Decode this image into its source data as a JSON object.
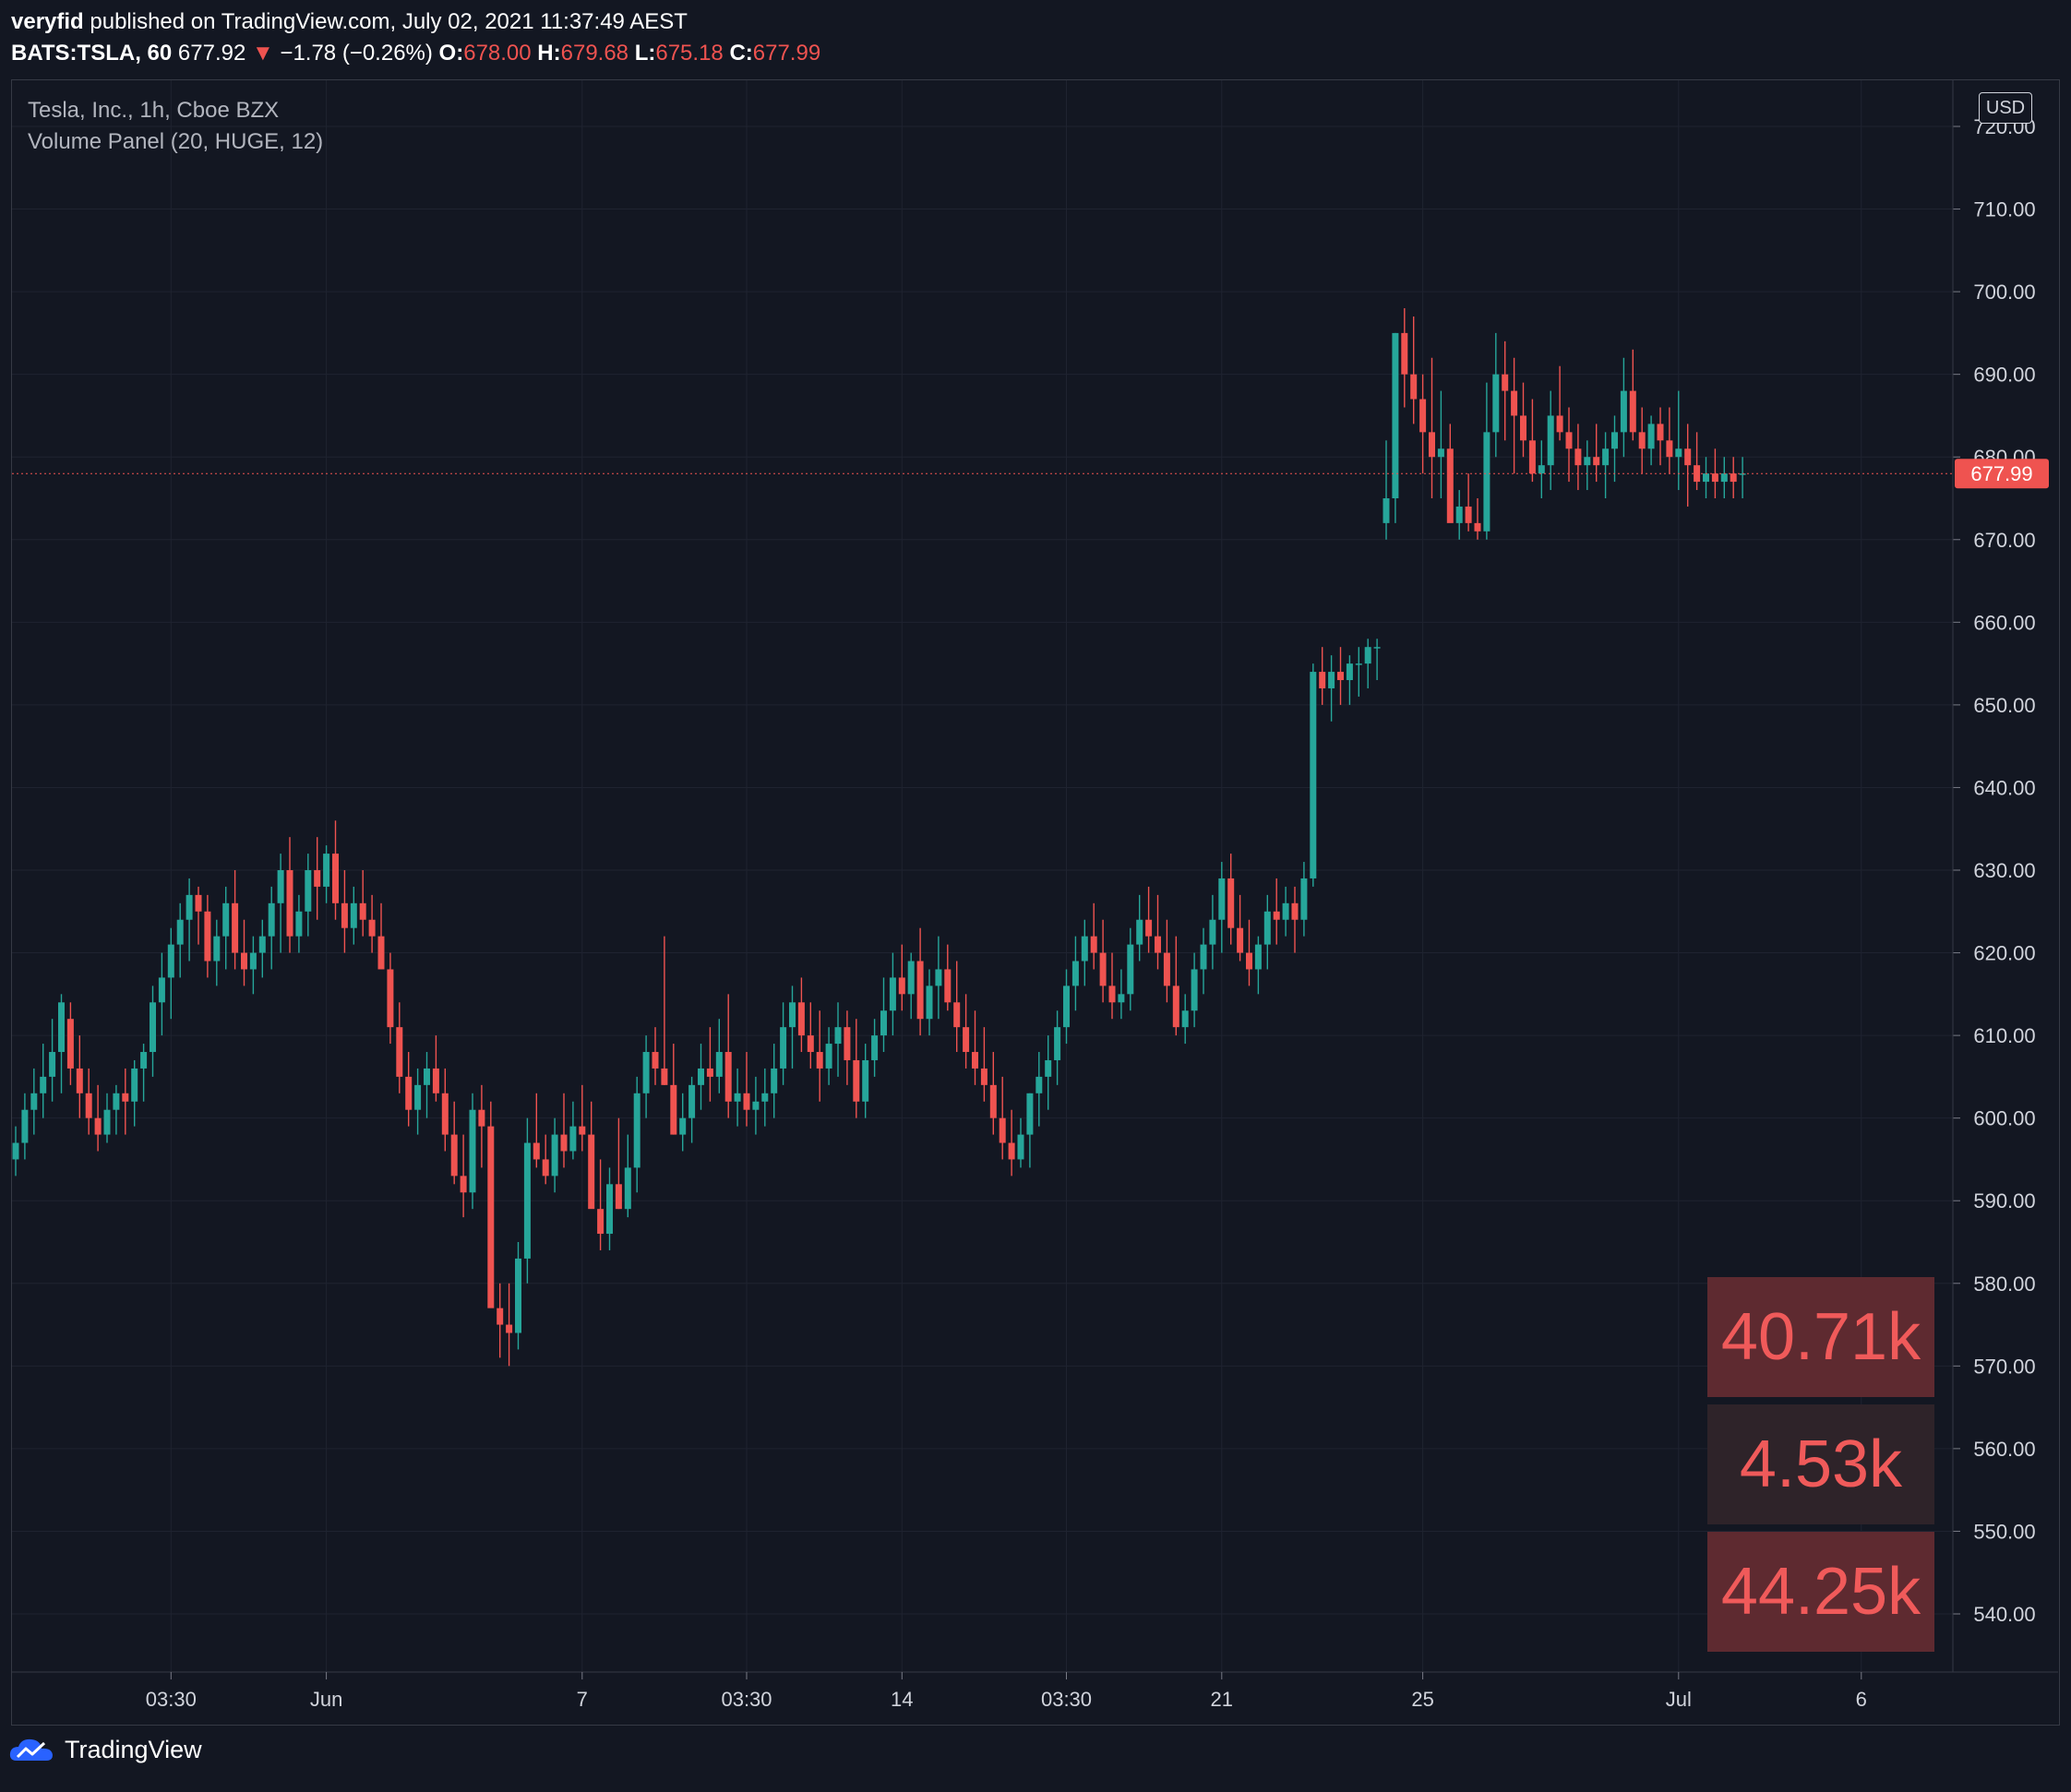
{
  "header": {
    "author": "veryfid",
    "published_text": "published on TradingView.com, July 02, 2021 11:37:49 AEST",
    "symbol": "BATS:TSLA, 60",
    "last": "677.92",
    "arrow": "▼",
    "change": "−1.78 (−0.26%)",
    "o_label": "O:",
    "o_value": "678.00",
    "h_label": "H:",
    "h_value": "679.68",
    "l_label": "L:",
    "l_value": "675.18",
    "c_label": "C:",
    "c_value": "677.99"
  },
  "legend": {
    "title": "Tesla, Inc., 1h, Cboe BZX",
    "indicator": "Volume Panel (20, HUGE, 12)"
  },
  "currency": "USD",
  "price_label": "677.99",
  "volume_boxes": [
    "40.71k",
    "4.53k",
    "44.25k"
  ],
  "footer": {
    "brand": "TradingView"
  },
  "colors": {
    "background": "#131722",
    "up": "#26a69a",
    "down": "#ef5350",
    "grid": "#1f2330",
    "price_line": "#ef5350"
  },
  "chart_data": {
    "type": "candlestick",
    "title": "Tesla, Inc., 1h, Cboe BZX",
    "ylim": [
      533,
      728
    ],
    "y_ticks": [
      720,
      710,
      700,
      690,
      680,
      670,
      660,
      650,
      640,
      630,
      620,
      610,
      600,
      590,
      580,
      570,
      560,
      550,
      540
    ],
    "x_tick_labels": [
      "03:30",
      "Jun",
      "7",
      "03:30",
      "14",
      "03:30",
      "21",
      "25",
      "Jul",
      "6"
    ],
    "x_tick_bar_index": [
      17,
      34,
      62,
      80,
      97,
      115,
      132,
      154,
      182,
      202
    ],
    "bar_count": 210,
    "last_price": 677.99,
    "bars": [
      [
        595,
        599,
        593,
        597
      ],
      [
        597,
        603,
        595,
        601
      ],
      [
        601,
        606,
        598,
        603
      ],
      [
        603,
        609,
        600,
        605
      ],
      [
        605,
        612,
        602,
        608
      ],
      [
        608,
        615,
        603,
        614
      ],
      [
        612,
        614,
        604,
        606
      ],
      [
        606,
        610,
        600,
        603
      ],
      [
        603,
        606,
        598,
        600
      ],
      [
        600,
        604,
        596,
        598
      ],
      [
        598,
        603,
        597,
        601
      ],
      [
        601,
        604,
        598,
        603
      ],
      [
        603,
        606,
        598,
        602
      ],
      [
        602,
        607,
        599,
        606
      ],
      [
        606,
        609,
        602,
        608
      ],
      [
        608,
        616,
        605,
        614
      ],
      [
        614,
        620,
        610,
        617
      ],
      [
        617,
        623,
        612,
        621
      ],
      [
        621,
        626,
        617,
        624
      ],
      [
        624,
        629,
        619,
        627
      ],
      [
        627,
        628,
        621,
        625
      ],
      [
        625,
        627,
        617,
        619
      ],
      [
        619,
        624,
        616,
        622
      ],
      [
        622,
        628,
        618,
        626
      ],
      [
        626,
        630,
        618,
        620
      ],
      [
        620,
        624,
        616,
        618
      ],
      [
        618,
        622,
        615,
        620
      ],
      [
        620,
        624,
        617,
        622
      ],
      [
        622,
        628,
        618,
        626
      ],
      [
        626,
        632,
        620,
        630
      ],
      [
        630,
        634,
        620,
        622
      ],
      [
        622,
        627,
        620,
        625
      ],
      [
        625,
        632,
        622,
        630
      ],
      [
        630,
        634,
        624,
        628
      ],
      [
        628,
        633,
        626,
        632
      ],
      [
        632,
        636,
        624,
        626
      ],
      [
        626,
        630,
        620,
        623
      ],
      [
        623,
        628,
        621,
        626
      ],
      [
        626,
        630,
        622,
        624
      ],
      [
        624,
        627,
        620,
        622
      ],
      [
        622,
        626,
        618,
        618
      ],
      [
        618,
        620,
        609,
        611
      ],
      [
        611,
        614,
        603,
        605
      ],
      [
        605,
        608,
        599,
        601
      ],
      [
        601,
        606,
        598,
        604
      ],
      [
        604,
        608,
        600,
        606
      ],
      [
        606,
        610,
        602,
        603
      ],
      [
        603,
        606,
        596,
        598
      ],
      [
        598,
        602,
        592,
        593
      ],
      [
        593,
        598,
        588,
        591
      ],
      [
        591,
        603,
        589,
        601
      ],
      [
        601,
        604,
        594,
        599
      ],
      [
        599,
        602,
        590,
        577
      ],
      [
        577,
        580,
        571,
        575
      ],
      [
        575,
        580,
        570,
        574
      ],
      [
        574,
        585,
        572,
        583
      ],
      [
        583,
        600,
        580,
        597
      ],
      [
        597,
        603,
        594,
        595
      ],
      [
        595,
        598,
        592,
        593
      ],
      [
        593,
        600,
        591,
        598
      ],
      [
        598,
        603,
        594,
        596
      ],
      [
        596,
        602,
        595,
        599
      ],
      [
        599,
        604,
        596,
        598
      ],
      [
        598,
        602,
        594,
        589
      ],
      [
        589,
        595,
        584,
        586
      ],
      [
        586,
        594,
        584,
        592
      ],
      [
        592,
        600,
        589,
        589
      ],
      [
        589,
        598,
        588,
        594
      ],
      [
        594,
        605,
        591,
        603
      ],
      [
        603,
        610,
        600,
        608
      ],
      [
        608,
        611,
        604,
        606
      ],
      [
        606,
        622,
        604,
        604
      ],
      [
        604,
        609,
        598,
        598
      ],
      [
        598,
        603,
        596,
        600
      ],
      [
        600,
        605,
        597,
        604
      ],
      [
        604,
        609,
        601,
        606
      ],
      [
        606,
        611,
        602,
        605
      ],
      [
        605,
        612,
        603,
        608
      ],
      [
        608,
        615,
        600,
        602
      ],
      [
        602,
        606,
        599,
        603
      ],
      [
        603,
        608,
        599,
        601
      ],
      [
        601,
        605,
        598,
        602
      ],
      [
        602,
        606,
        599,
        603
      ],
      [
        603,
        609,
        600,
        606
      ],
      [
        606,
        614,
        604,
        611
      ],
      [
        611,
        616,
        606,
        614
      ],
      [
        614,
        617,
        608,
        610
      ],
      [
        610,
        614,
        606,
        608
      ],
      [
        608,
        613,
        602,
        606
      ],
      [
        606,
        611,
        604,
        609
      ],
      [
        609,
        614,
        605,
        611
      ],
      [
        611,
        613,
        604,
        607
      ],
      [
        607,
        612,
        600,
        602
      ],
      [
        602,
        609,
        600,
        607
      ],
      [
        607,
        612,
        605,
        610
      ],
      [
        610,
        617,
        608,
        613
      ],
      [
        613,
        620,
        610,
        617
      ],
      [
        617,
        621,
        613,
        615
      ],
      [
        615,
        620,
        612,
        619
      ],
      [
        619,
        623,
        610,
        612
      ],
      [
        612,
        618,
        610,
        616
      ],
      [
        616,
        622,
        612,
        618
      ],
      [
        618,
        621,
        613,
        614
      ],
      [
        614,
        619,
        608,
        611
      ],
      [
        611,
        615,
        606,
        608
      ],
      [
        608,
        613,
        604,
        606
      ],
      [
        606,
        611,
        602,
        604
      ],
      [
        604,
        608,
        598,
        600
      ],
      [
        600,
        605,
        595,
        597
      ],
      [
        597,
        601,
        593,
        595
      ],
      [
        595,
        600,
        594,
        598
      ],
      [
        598,
        603,
        594,
        603
      ],
      [
        603,
        608,
        599,
        605
      ],
      [
        605,
        610,
        601,
        607
      ],
      [
        607,
        613,
        604,
        611
      ],
      [
        611,
        618,
        609,
        616
      ],
      [
        616,
        622,
        613,
        619
      ],
      [
        619,
        624,
        616,
        622
      ],
      [
        622,
        626,
        618,
        620
      ],
      [
        620,
        624,
        614,
        616
      ],
      [
        616,
        620,
        612,
        614
      ],
      [
        614,
        618,
        612,
        615
      ],
      [
        615,
        623,
        613,
        621
      ],
      [
        621,
        627,
        619,
        624
      ],
      [
        624,
        628,
        620,
        622
      ],
      [
        622,
        627,
        618,
        620
      ],
      [
        620,
        624,
        614,
        616
      ],
      [
        616,
        622,
        610,
        611
      ],
      [
        611,
        615,
        609,
        613
      ],
      [
        613,
        620,
        611,
        618
      ],
      [
        618,
        623,
        615,
        621
      ],
      [
        621,
        627,
        618,
        624
      ],
      [
        624,
        631,
        620,
        629
      ],
      [
        629,
        632,
        621,
        623
      ],
      [
        623,
        627,
        619,
        620
      ],
      [
        620,
        624,
        616,
        618
      ],
      [
        618,
        622,
        615,
        621
      ],
      [
        621,
        627,
        618,
        625
      ],
      [
        625,
        629,
        621,
        624
      ],
      [
        624,
        628,
        622,
        626
      ],
      [
        626,
        628,
        620,
        624
      ],
      [
        624,
        631,
        622,
        629
      ],
      [
        629,
        655,
        628,
        654
      ],
      [
        654,
        657,
        650,
        652
      ],
      [
        652,
        656,
        648,
        654
      ],
      [
        654,
        657,
        650,
        653
      ],
      [
        653,
        656,
        650,
        655
      ],
      [
        655,
        657,
        651,
        655
      ],
      [
        655,
        658,
        652,
        657
      ],
      [
        657,
        658,
        653,
        657
      ],
      [
        672,
        682,
        670,
        675
      ],
      [
        675,
        695,
        672,
        695
      ],
      [
        695,
        698,
        686,
        690
      ],
      [
        690,
        697,
        684,
        687
      ],
      [
        687,
        690,
        678,
        683
      ],
      [
        683,
        692,
        675,
        680
      ],
      [
        680,
        688,
        675,
        681
      ],
      [
        681,
        684,
        674,
        672
      ],
      [
        672,
        676,
        670,
        674
      ],
      [
        674,
        678,
        671,
        672
      ],
      [
        672,
        675,
        670,
        671
      ],
      [
        671,
        689,
        670,
        683
      ],
      [
        683,
        695,
        680,
        690
      ],
      [
        690,
        694,
        682,
        688
      ],
      [
        688,
        692,
        678,
        685
      ],
      [
        685,
        689,
        680,
        682
      ],
      [
        682,
        687,
        677,
        678
      ],
      [
        678,
        682,
        675,
        679
      ],
      [
        679,
        688,
        676,
        685
      ],
      [
        685,
        691,
        682,
        683
      ],
      [
        683,
        686,
        677,
        681
      ],
      [
        681,
        684,
        676,
        679
      ],
      [
        679,
        682,
        676,
        680
      ],
      [
        680,
        684,
        677,
        679
      ],
      [
        679,
        683,
        675,
        681
      ],
      [
        681,
        685,
        677,
        683
      ],
      [
        683,
        692,
        680,
        688
      ],
      [
        688,
        693,
        682,
        683
      ],
      [
        683,
        686,
        678,
        681
      ],
      [
        681,
        685,
        679,
        684
      ],
      [
        684,
        686,
        679,
        682
      ],
      [
        682,
        686,
        678,
        680
      ],
      [
        680,
        688,
        676,
        681
      ],
      [
        681,
        684,
        674,
        679
      ],
      [
        679,
        683,
        676,
        677
      ],
      [
        677,
        680,
        675,
        678
      ],
      [
        678,
        681,
        675,
        677
      ],
      [
        677,
        680,
        675,
        678
      ],
      [
        678,
        680,
        675,
        677
      ],
      [
        678,
        680,
        675,
        678
      ]
    ]
  }
}
